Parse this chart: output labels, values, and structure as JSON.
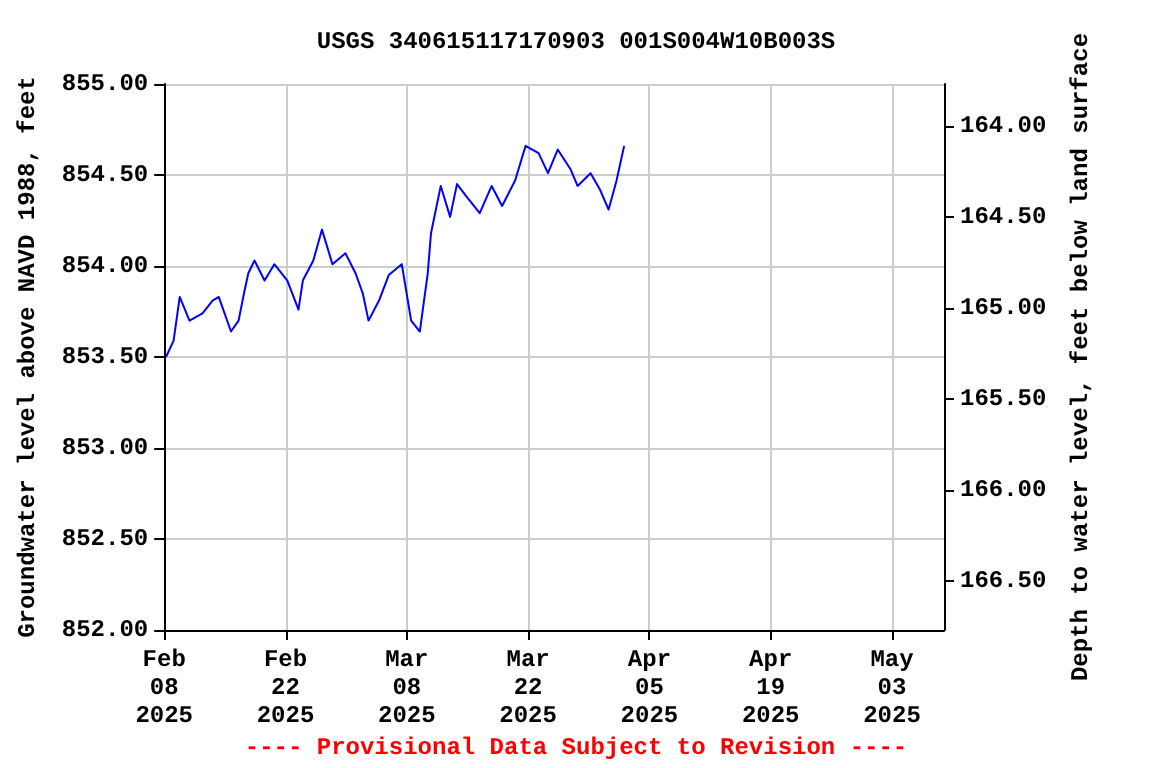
{
  "chart_data": {
    "type": "line",
    "title": "USGS 340615117170903 001S004W10B003S",
    "ylabel": "Groundwater level above NAVD 1988, feet",
    "y2label": "Depth to water level, feet below land surface",
    "annotations": [
      "---- Provisional Data Subject to Revision ----"
    ],
    "x": [
      "2025-02-08T05:00",
      "2025-02-09T02:00",
      "2025-02-09T19:00",
      "2025-02-10T22:00",
      "2025-02-12T10:00",
      "2025-02-13T14:00",
      "2025-02-14T07:00",
      "2025-02-15T17:00",
      "2025-02-16T14:00",
      "2025-02-17T05:00",
      "2025-02-17T17:00",
      "2025-02-18T10:00",
      "2025-02-19T14:00",
      "2025-02-20T17:00",
      "2025-02-22T05:00",
      "2025-02-23T12:00",
      "2025-02-24T00:00",
      "2025-02-25T05:00",
      "2025-02-26T05:00",
      "2025-02-27T10:00",
      "2025-02-28T22:00",
      "2025-03-02T02:00",
      "2025-03-02T22:00",
      "2025-03-03T14:00",
      "2025-03-04T19:00",
      "2025-03-05T22:00",
      "2025-03-07T10:00",
      "2025-03-08T12:00",
      "2025-03-09T12:00",
      "2025-03-10T10:00",
      "2025-03-10T19:00",
      "2025-03-11T22:00",
      "2025-03-13T00:00",
      "2025-03-13T19:00",
      "2025-03-14T22:00",
      "2025-03-16T10:00",
      "2025-03-17T19:00",
      "2025-03-19T00:00",
      "2025-03-20T12:00",
      "2025-03-21T17:00",
      "2025-03-23T05:00",
      "2025-03-24T07:00",
      "2025-03-25T10:00",
      "2025-03-26T22:00",
      "2025-03-27T17:00",
      "2025-03-29T05:00",
      "2025-03-30T07:00",
      "2025-03-31T07:00",
      "2025-04-01T05:00",
      "2025-04-02T02:00"
    ],
    "series": [
      {
        "color": "#0000ff",
        "values": [
          853.5,
          853.59,
          853.83,
          853.7,
          853.74,
          853.81,
          853.83,
          853.64,
          853.7,
          853.85,
          853.96,
          854.03,
          853.92,
          854.01,
          853.92,
          853.76,
          853.92,
          854.03,
          854.2,
          854.01,
          854.07,
          853.96,
          853.85,
          853.7,
          853.81,
          853.95,
          854.01,
          853.7,
          853.64,
          853.96,
          854.18,
          854.44,
          854.27,
          854.45,
          854.38,
          854.29,
          854.44,
          854.33,
          854.47,
          854.66,
          854.62,
          854.51,
          854.64,
          854.53,
          854.44,
          854.51,
          854.42,
          854.31,
          854.47,
          854.66
        ]
      }
    ],
    "xlim": [
      "2025-02-08",
      "2025-05-09"
    ],
    "xticks": [
      {
        "value": "2025-02-08",
        "label": "Feb\n08\n2025"
      },
      {
        "value": "2025-02-22",
        "label": "Feb\n22\n2025"
      },
      {
        "value": "2025-03-08",
        "label": "Mar\n08\n2025"
      },
      {
        "value": "2025-03-22",
        "label": "Mar\n22\n2025"
      },
      {
        "value": "2025-04-05",
        "label": "Apr\n05\n2025"
      },
      {
        "value": "2025-04-19",
        "label": "Apr\n19\n2025"
      },
      {
        "value": "2025-05-03",
        "label": "May\n03\n2025"
      }
    ],
    "ylim": [
      852,
      855
    ],
    "yticks": [
      {
        "value": 852,
        "label": "852.00"
      },
      {
        "value": 852.5,
        "label": "852.50"
      },
      {
        "value": 853,
        "label": "853.00"
      },
      {
        "value": 853.5,
        "label": "853.50"
      },
      {
        "value": 854,
        "label": "854.00"
      },
      {
        "value": 854.5,
        "label": "854.50"
      },
      {
        "value": 855,
        "label": "855.00"
      }
    ],
    "y2lim": [
      166.77,
      163.77
    ],
    "y2ticks": [
      {
        "value": 164,
        "label": "164.00"
      },
      {
        "value": 164.5,
        "label": "164.50"
      },
      {
        "value": 165,
        "label": "165.00"
      },
      {
        "value": 165.5,
        "label": "165.50"
      },
      {
        "value": 166,
        "label": "166.00"
      },
      {
        "value": 166.5,
        "label": "166.50"
      }
    ],
    "grid": true,
    "line_style": "solid",
    "marker": "none"
  }
}
